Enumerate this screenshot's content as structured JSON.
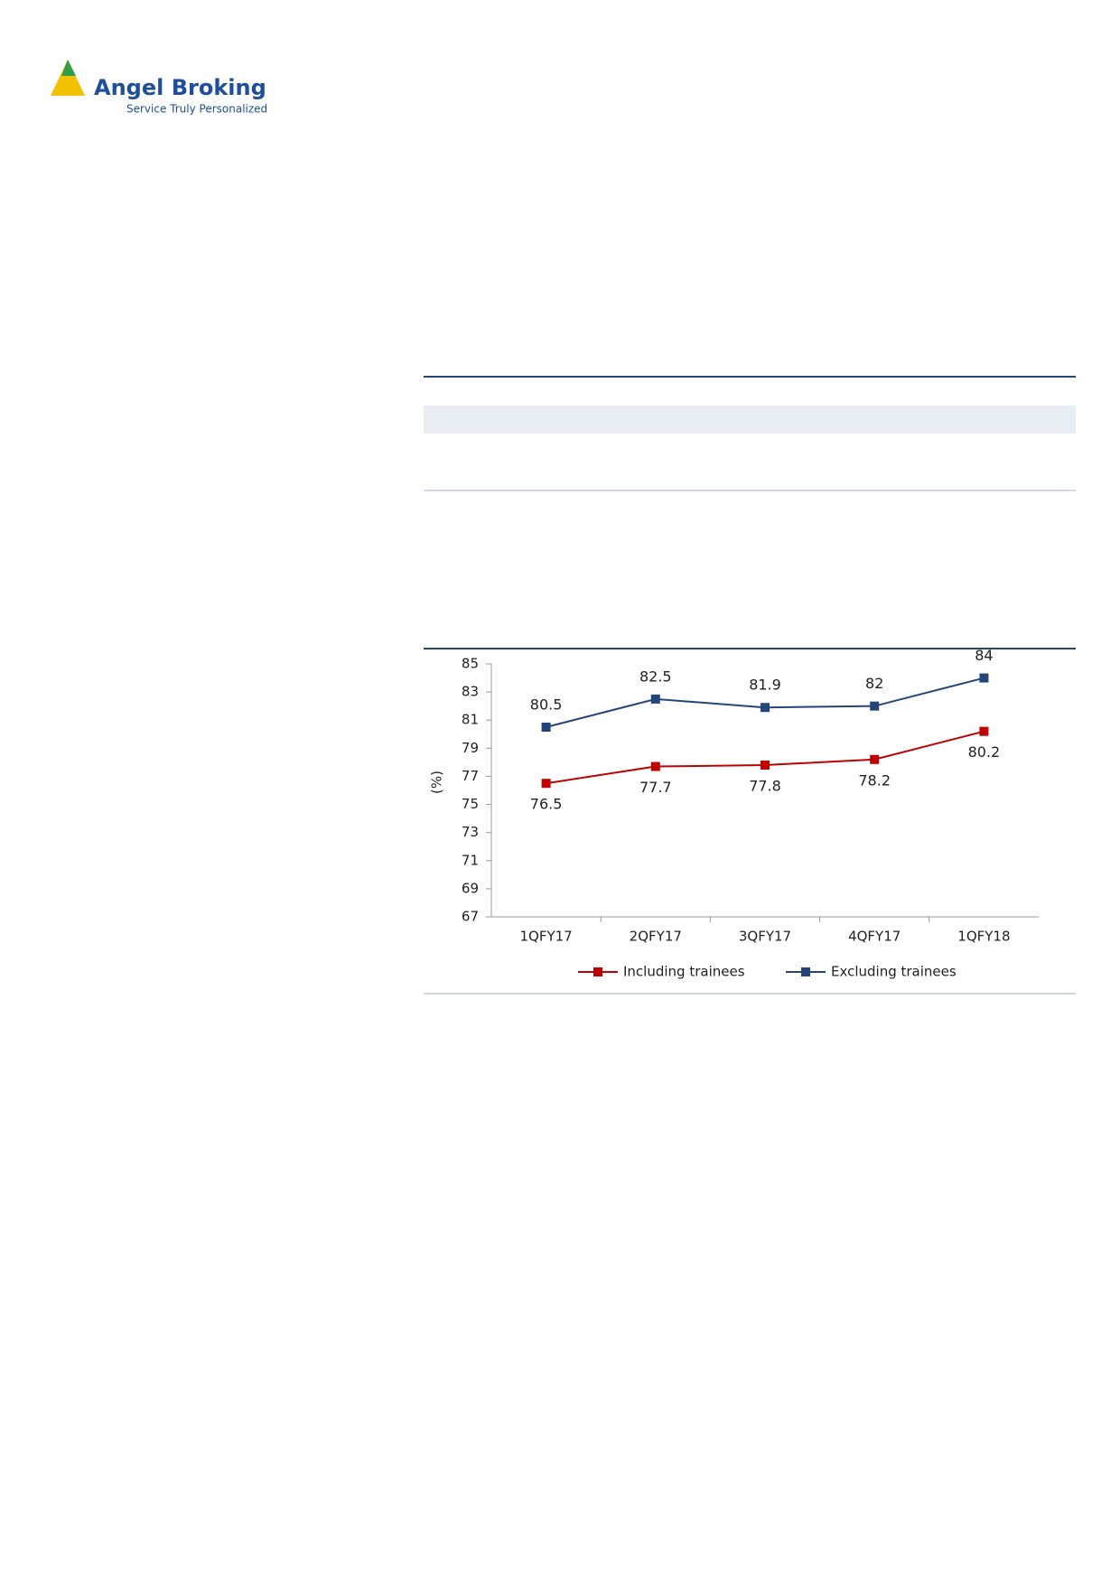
{
  "header": {
    "brand": "Angel Broking",
    "tagline": "Service Truly Personalized"
  },
  "chart_data": {
    "type": "line",
    "y_label": "(%)",
    "categories": [
      "1QFY17",
      "2QFY17",
      "3QFY17",
      "4QFY17",
      "1QFY18"
    ],
    "series": [
      {
        "name": "Including trainees",
        "color": "#c00000",
        "values": [
          76.5,
          77.7,
          77.8,
          78.2,
          80.2
        ]
      },
      {
        "name": "Excluding trainees",
        "color": "#24457a",
        "values": [
          80.5,
          82.5,
          81.9,
          82,
          84
        ]
      }
    ],
    "ylim": [
      67,
      85
    ],
    "yticks": [
      67,
      69,
      71,
      73,
      75,
      77,
      79,
      81,
      83,
      85
    ],
    "grid": false,
    "legend": "bottom"
  }
}
